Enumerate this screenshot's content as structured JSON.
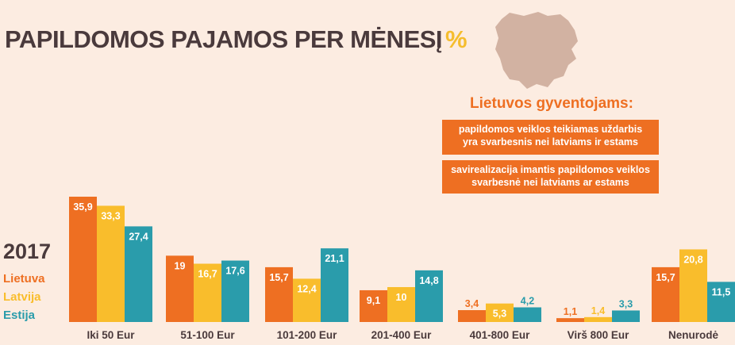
{
  "title": "PAPILDOMOS PAJAMOS PER MĖNESĮ",
  "title_unit": "%",
  "facts": {
    "heading": "Lietuvos gyventojams:",
    "items": [
      [
        "papildomos veiklos teikiamas uždarbis",
        "yra svarbesnis nei latviams ir estams"
      ],
      [
        "savirealizacija imantis papildomos veiklos",
        "svarbesnė nei latviams ar estams"
      ]
    ]
  },
  "colors": {
    "background": "#fcece1",
    "title": "#4a3a3c",
    "accent": "#ee6f22",
    "map": "#d2b2a2"
  },
  "chart_data": {
    "type": "bar",
    "year": "2017",
    "categories": [
      "Iki 50 Eur",
      "51-100 Eur",
      "101-200 Eur",
      "201-400 Eur",
      "401-800 Eur",
      "Virš 800 Eur",
      "Nenurodė"
    ],
    "series": [
      {
        "name": "Lietuva",
        "color": "#ee6f22",
        "values": [
          35.9,
          19,
          15.7,
          9.1,
          3.4,
          1.1,
          15.7
        ],
        "labels": [
          "35,9",
          "19",
          "15,7",
          "9,1",
          "3,4",
          "1,1",
          "15,7"
        ]
      },
      {
        "name": "Latvija",
        "color": "#f9bd2c",
        "values": [
          33.3,
          16.7,
          12.4,
          10,
          5.3,
          1.4,
          20.8
        ],
        "labels": [
          "33,3",
          "16,7",
          "12,4",
          "10",
          "5,3",
          "1,4",
          "20,8"
        ]
      },
      {
        "name": "Estija",
        "color": "#2a9cab",
        "values": [
          27.4,
          17.6,
          21.1,
          14.8,
          4.2,
          3.3,
          11.5
        ],
        "labels": [
          "27,4",
          "17,6",
          "21,1",
          "14,8",
          "4,2",
          "3,3",
          "11,5"
        ]
      }
    ],
    "ylim": [
      0,
      36
    ]
  }
}
